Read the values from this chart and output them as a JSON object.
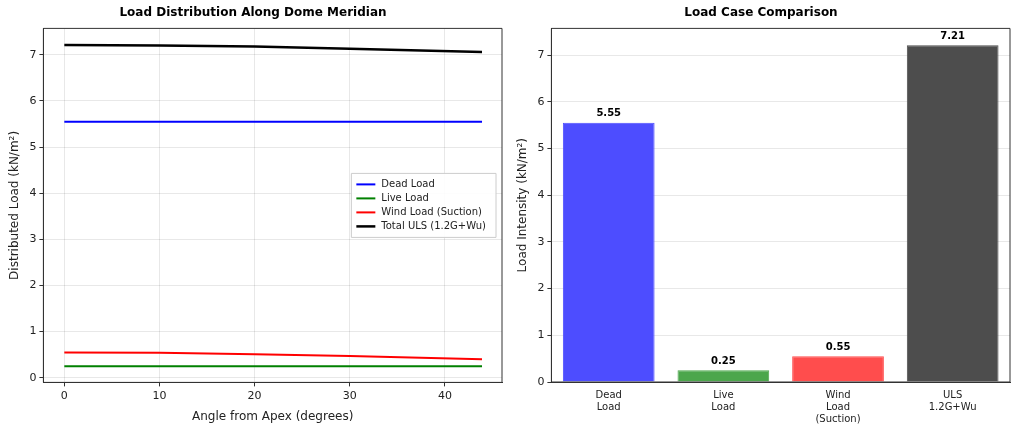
{
  "chart_data": [
    {
      "type": "line",
      "title": "Load Distribution Along Dome Meridian",
      "xlabel": "Angle from Apex (degrees)",
      "ylabel": "Distributed Load (kN/m²)",
      "x": [
        0,
        10,
        20,
        30,
        43.9
      ],
      "series": [
        {
          "name": "Dead Load",
          "color": "#0000ff",
          "values": [
            5.55,
            5.55,
            5.55,
            5.55,
            5.55
          ]
        },
        {
          "name": "Live Load",
          "color": "#008000",
          "values": [
            0.25,
            0.25,
            0.25,
            0.25,
            0.25
          ]
        },
        {
          "name": "Wind Load (Suction)",
          "color": "#ff0000",
          "values": [
            0.55,
            0.54,
            0.51,
            0.47,
            0.4
          ]
        },
        {
          "name": "Total ULS (1.2G+Wu)",
          "color": "#000000",
          "values": [
            7.21,
            7.2,
            7.18,
            7.13,
            7.06
          ]
        }
      ],
      "xlim": [
        -2.2,
        46
      ],
      "xticks": [
        0,
        10,
        20,
        30,
        40
      ],
      "ylim": [
        -0.1,
        7.57
      ],
      "yticks": [
        0,
        1,
        2,
        3,
        4,
        5,
        6,
        7
      ],
      "grid": true,
      "legend": "center right",
      "marker": "none",
      "line_style": "solid"
    },
    {
      "type": "bar",
      "title": "Load Case Comparison",
      "ylabel": "Load Intensity (kN/m²)",
      "categories": [
        "Dead\nLoad",
        "Live\nLoad",
        "Wind\nLoad\n(Suction)",
        "ULS\n1.2G+Wu"
      ],
      "values": [
        5.55,
        0.25,
        0.55,
        7.21
      ],
      "colors": [
        "#4d4dff",
        "#4ca64c",
        "#ff4d4d",
        "#4d4d4d"
      ],
      "ylim": [
        0,
        7.57
      ],
      "yticks": [
        0,
        1,
        2,
        3,
        4,
        5,
        6,
        7
      ],
      "grid": "y",
      "data_labels": true
    }
  ]
}
